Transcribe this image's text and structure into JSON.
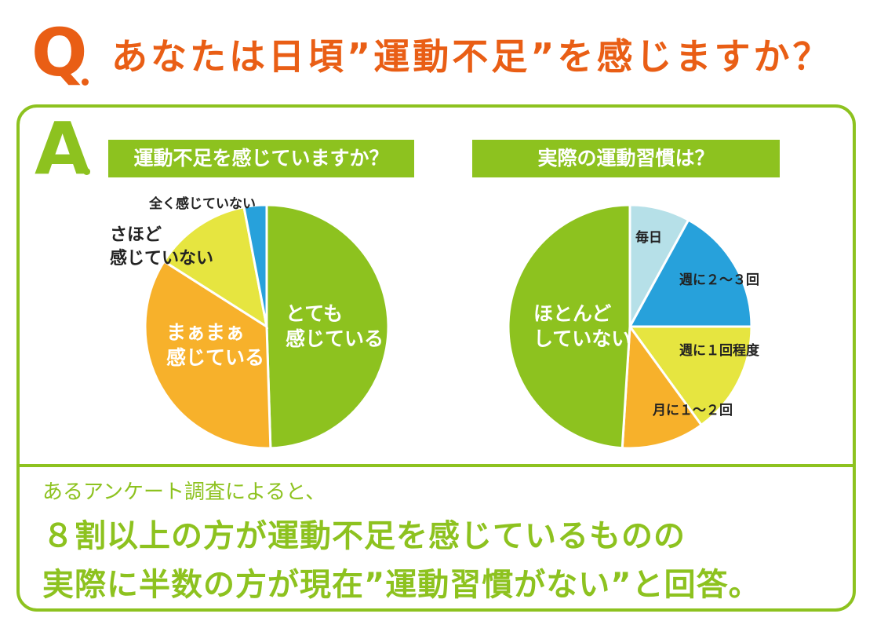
{
  "header": {
    "q_letter": "Q",
    "question": "あなたは日頃”運動不足”を感じますか？"
  },
  "answer": {
    "a_letter": "A"
  },
  "charts_meta": {
    "chart1_title": "運動不足を感じていますか？",
    "chart2_title": "実際の運動習慣は？"
  },
  "colors": {
    "green": "#8dc21f",
    "orange": "#f7b12b",
    "yellow": "#e6e540",
    "blue": "#27a1db",
    "lightblue": "#b6e0e8",
    "accent": "#e95e15"
  },
  "chart_data": [
    {
      "type": "pie",
      "title": "運動不足を感じていますか？",
      "slices": [
        {
          "label": "とても感じている",
          "label_lines": [
            "とても",
            "感じている"
          ],
          "value": 49.5,
          "color": "#8dc21f"
        },
        {
          "label": "まぁまぁ感じている",
          "label_lines": [
            "まぁまぁ",
            "感じている"
          ],
          "value": 34.5,
          "color": "#f7b12b"
        },
        {
          "label": "さほど感じていない",
          "label_lines": [
            "さほど",
            "感じていない"
          ],
          "value": 13,
          "color": "#e6e540"
        },
        {
          "label": "全く感じていない",
          "label_lines": [
            "全く感じていない"
          ],
          "value": 3,
          "color": "#27a1db"
        }
      ]
    },
    {
      "type": "pie",
      "title": "実際の運動習慣は？",
      "slices": [
        {
          "label": "毎日",
          "label_lines": [
            "毎日"
          ],
          "value": 8,
          "color": "#b6e0e8"
        },
        {
          "label": "週に２～３回",
          "label_lines": [
            "週に２～３回"
          ],
          "value": 17,
          "color": "#27a1db"
        },
        {
          "label": "週に１回程度",
          "label_lines": [
            "週に１回程度"
          ],
          "value": 15,
          "color": "#e6e540"
        },
        {
          "label": "月に１～２回",
          "label_lines": [
            "月に１～２回"
          ],
          "value": 11,
          "color": "#f7b12b"
        },
        {
          "label": "ほとんどしていない",
          "label_lines": [
            "ほとんど",
            "していない"
          ],
          "value": 49,
          "color": "#8dc21f"
        }
      ]
    }
  ],
  "summary": {
    "intro": "あるアンケート調査によると、",
    "line1": "８割以上の方が運動不足を感じているものの",
    "line2": "実際に半数の方が現在”運動習慣がない”と回答。"
  }
}
